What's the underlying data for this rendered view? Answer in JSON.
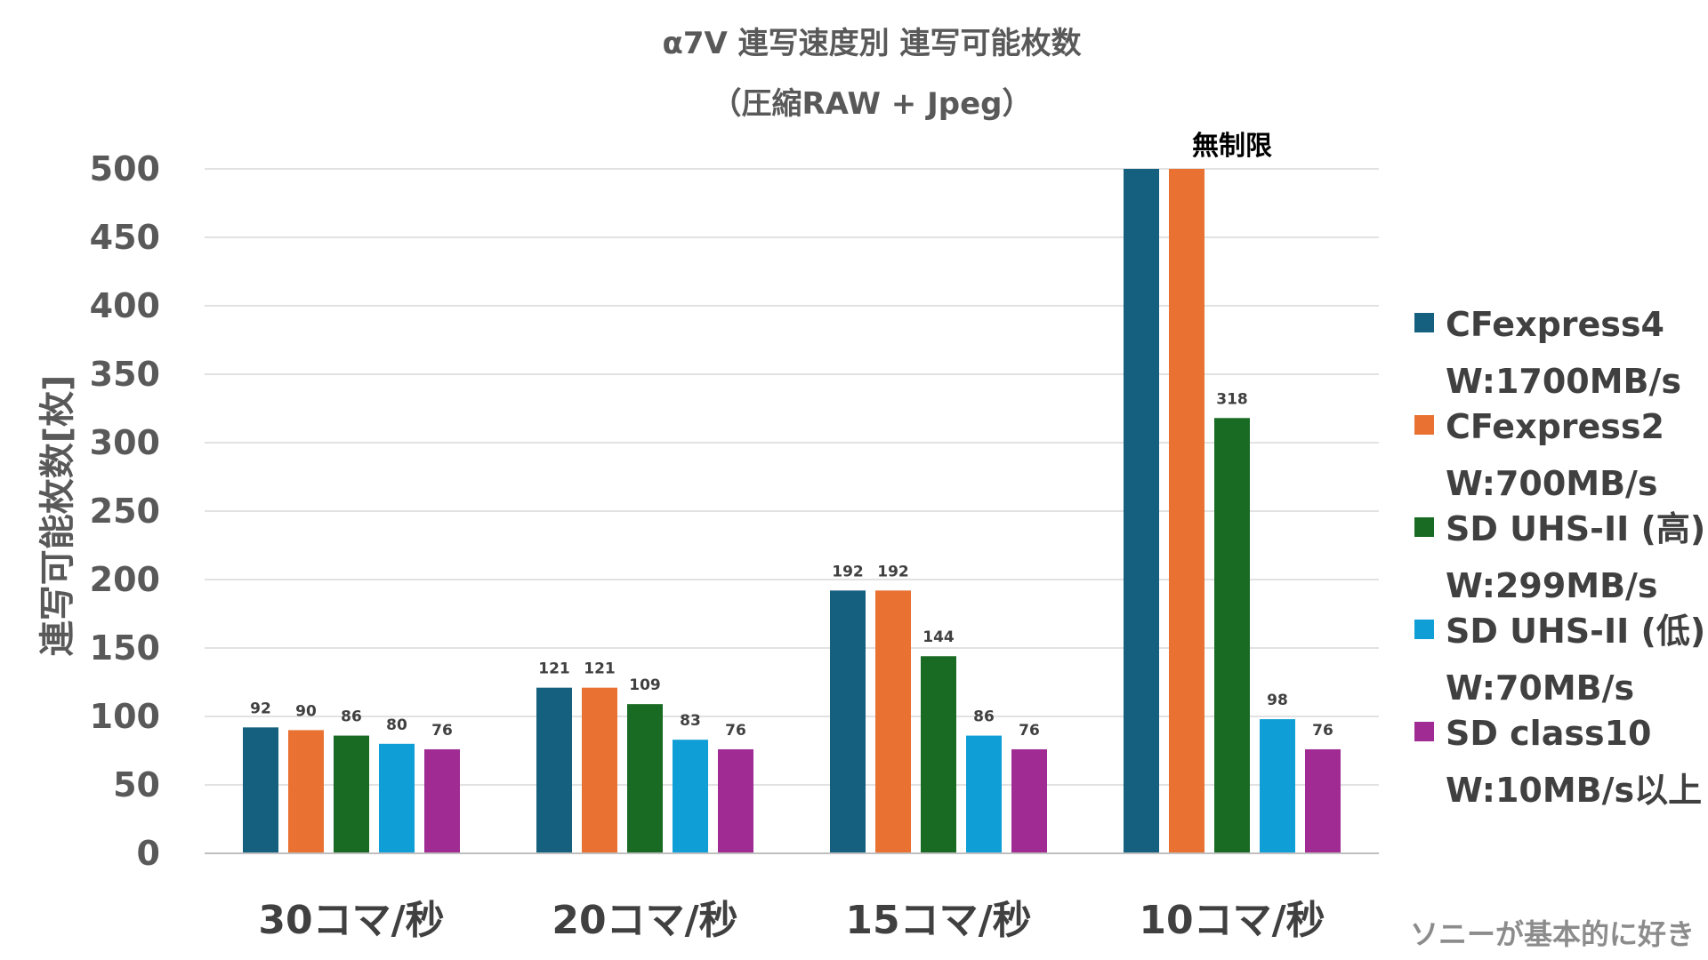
{
  "chart_data": {
    "type": "bar",
    "title_line1": "α7V 連写速度別 連写可能枚数",
    "title_line2": "（圧縮RAW + Jpeg）",
    "ylabel": "連写可能枚数[枚]",
    "ylim": [
      0,
      500
    ],
    "yticks": [
      0,
      50,
      100,
      150,
      200,
      250,
      300,
      350,
      400,
      450,
      500
    ],
    "grid": true,
    "legend_position": "right",
    "categories": [
      "30コマ/秒",
      "20コマ/秒",
      "15コマ/秒",
      "10コマ/秒"
    ],
    "series": [
      {
        "name": "CFexpress4",
        "name_line2": "W:1700MB/s",
        "color": "#16607f",
        "values": [
          92,
          121,
          192,
          500
        ],
        "labels": [
          "92",
          "121",
          "192",
          ""
        ]
      },
      {
        "name": "CFexpress2",
        "name_line2": "W:700MB/s",
        "color": "#e97132",
        "values": [
          90,
          121,
          192,
          500
        ],
        "labels": [
          "90",
          "121",
          "192",
          ""
        ]
      },
      {
        "name": "SD UHS-II (高)",
        "name_line2": "W:299MB/s",
        "color": "#196b24",
        "values": [
          86,
          109,
          144,
          318
        ],
        "labels": [
          "86",
          "109",
          "144",
          "318"
        ]
      },
      {
        "name": "SD UHS-II (低)",
        "name_line2": "W:70MB/s",
        "color": "#0f9ed5",
        "values": [
          80,
          83,
          86,
          98
        ],
        "labels": [
          "80",
          "83",
          "86",
          "98"
        ]
      },
      {
        "name": "SD class10",
        "name_line2": "W:10MB/s以上",
        "color": "#a02b93",
        "values": [
          76,
          76,
          76,
          76
        ],
        "labels": [
          "76",
          "76",
          "76",
          "76"
        ]
      }
    ],
    "annotation": "無制限"
  },
  "credit": "ソニーが基本的に好き"
}
